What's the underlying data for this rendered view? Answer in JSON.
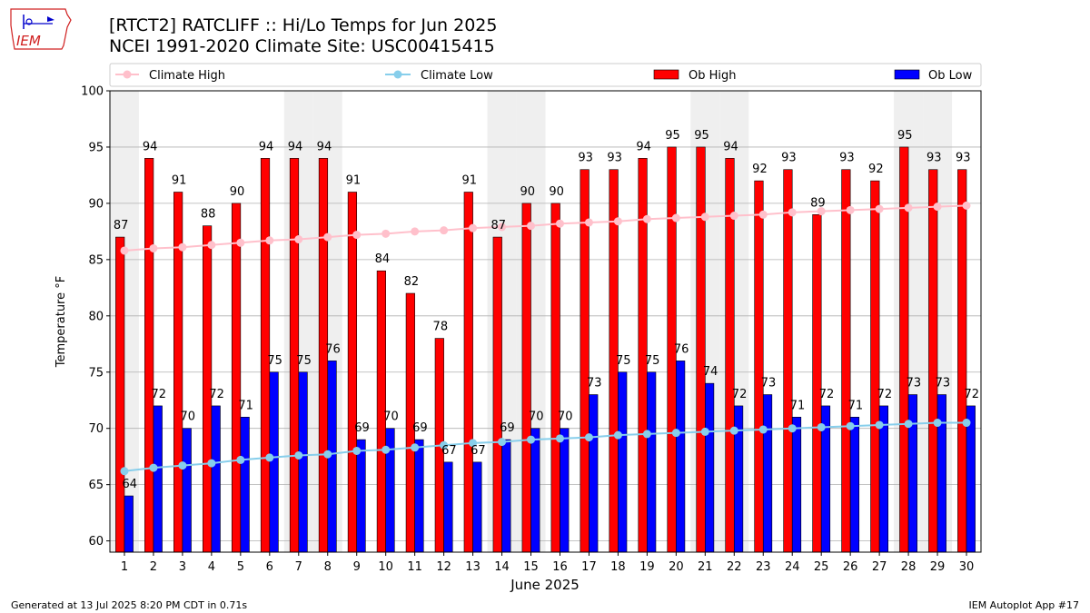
{
  "header": {
    "title_line1": "[RTCT2] RATCLIFF :: Hi/Lo Temps for Jun 2025",
    "title_line2": "NCEI 1991-2020 Climate Site: USC00415415",
    "logo_text": "IEM"
  },
  "footer": {
    "generated": "Generated at 13 Jul 2025 8:20 PM CDT in 0.71s",
    "app": "IEM Autoplot App #17"
  },
  "colors": {
    "ob_high": "#ff0000",
    "ob_low": "#0000ff",
    "climate_high": "#ffc0cb",
    "climate_low": "#87ceeb",
    "weekend_shade": "#efefef",
    "grid": "#b0b0b0",
    "logo": "#d02020"
  },
  "chart_data": {
    "type": "bar",
    "xlabel": "June 2025",
    "ylabel": "Temperature °F",
    "ylim": [
      59,
      100
    ],
    "yticks": [
      60,
      65,
      70,
      75,
      80,
      85,
      90,
      95,
      100
    ],
    "grid": "horizontal",
    "legend_placement": "top",
    "categories": [
      "1",
      "2",
      "3",
      "4",
      "5",
      "6",
      "7",
      "8",
      "9",
      "10",
      "11",
      "12",
      "13",
      "14",
      "15",
      "16",
      "17",
      "18",
      "19",
      "20",
      "21",
      "22",
      "23",
      "24",
      "25",
      "26",
      "27",
      "28",
      "29",
      "30"
    ],
    "shaded_days": [
      1,
      7,
      8,
      14,
      15,
      21,
      22,
      28,
      29
    ],
    "series": [
      {
        "name": "Climate High",
        "kind": "line",
        "values": [
          85.8,
          86.0,
          86.1,
          86.3,
          86.5,
          86.7,
          86.8,
          87.0,
          87.2,
          87.3,
          87.5,
          87.6,
          87.8,
          87.9,
          88.0,
          88.2,
          88.3,
          88.4,
          88.6,
          88.7,
          88.8,
          88.9,
          89.0,
          89.2,
          89.3,
          89.4,
          89.5,
          89.6,
          89.7,
          89.8
        ]
      },
      {
        "name": "Climate Low",
        "kind": "line",
        "values": [
          66.2,
          66.5,
          66.7,
          66.9,
          67.2,
          67.4,
          67.6,
          67.7,
          68.0,
          68.1,
          68.3,
          68.5,
          68.7,
          68.8,
          69.0,
          69.1,
          69.2,
          69.4,
          69.5,
          69.6,
          69.7,
          69.8,
          69.9,
          70.0,
          70.1,
          70.2,
          70.3,
          70.4,
          70.5,
          70.5
        ]
      },
      {
        "name": "Ob High",
        "kind": "bar",
        "values": [
          87,
          94,
          91,
          88,
          90,
          94,
          94,
          94,
          91,
          84,
          82,
          78,
          91,
          87,
          90,
          90,
          93,
          93,
          94,
          95,
          95,
          94,
          92,
          93,
          89,
          93,
          92,
          95,
          93,
          93
        ]
      },
      {
        "name": "Ob Low",
        "kind": "bar",
        "values": [
          64,
          72,
          70,
          72,
          71,
          75,
          75,
          76,
          69,
          70,
          69,
          67,
          67,
          69,
          70,
          70,
          73,
          75,
          75,
          76,
          74,
          72,
          73,
          71,
          72,
          71,
          72,
          73,
          73,
          72
        ]
      }
    ]
  }
}
